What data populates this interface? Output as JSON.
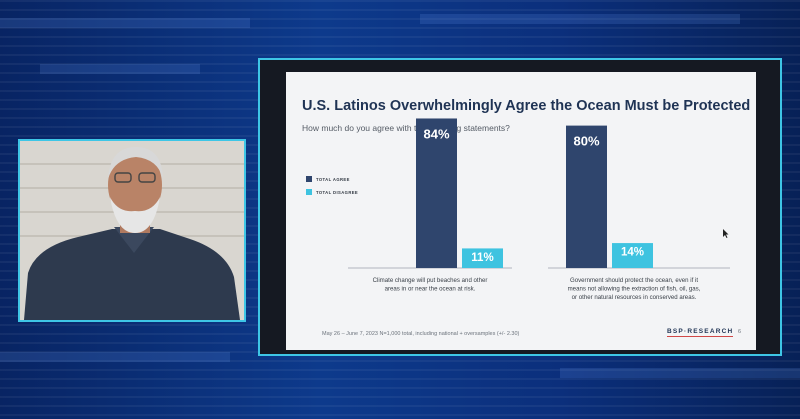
{
  "slide": {
    "title": "U.S. Latinos Overwhelmingly Agree the Ocean Must be Protected",
    "subtitle": "How much do you agree with the following statements?",
    "footer_note": "May 26 – June 7, 2023 N=1,000 total, including national + oversamples (+/- 2.30)",
    "brand": "BSP·RESEARCH",
    "page_number": "6"
  },
  "chart_data": {
    "type": "bar",
    "categories": [
      "Climate change will put beaches and other areas in or near the ocean at risk.",
      "Government should protect the ocean, even if it means not allowing the extraction of fish, oil, gas, or other natural resources in conserved areas."
    ],
    "category_lines": [
      [
        "Climate change will put beaches and other",
        "areas in or near the ocean at risk."
      ],
      [
        "Government should protect the ocean, even if it",
        "means not allowing the extraction of fish, oil, gas,",
        "or other natural resources in conserved areas."
      ]
    ],
    "series": [
      {
        "name": "TOTAL AGREE",
        "values": [
          84,
          80
        ],
        "labels": [
          "84%",
          "80%"
        ],
        "color": "#2f456d"
      },
      {
        "name": "TOTAL DISAGREE",
        "values": [
          11,
          14
        ],
        "labels": [
          "11%",
          "14%"
        ],
        "color": "#3ec3e0"
      }
    ],
    "ylim": [
      0,
      100
    ],
    "legend_position": "left"
  },
  "colors": {
    "frame_border": "#3ec6e6",
    "title_navy": "#1f3354",
    "agree_navy": "#2f456d",
    "disagree_cyan": "#3ec3e0"
  }
}
